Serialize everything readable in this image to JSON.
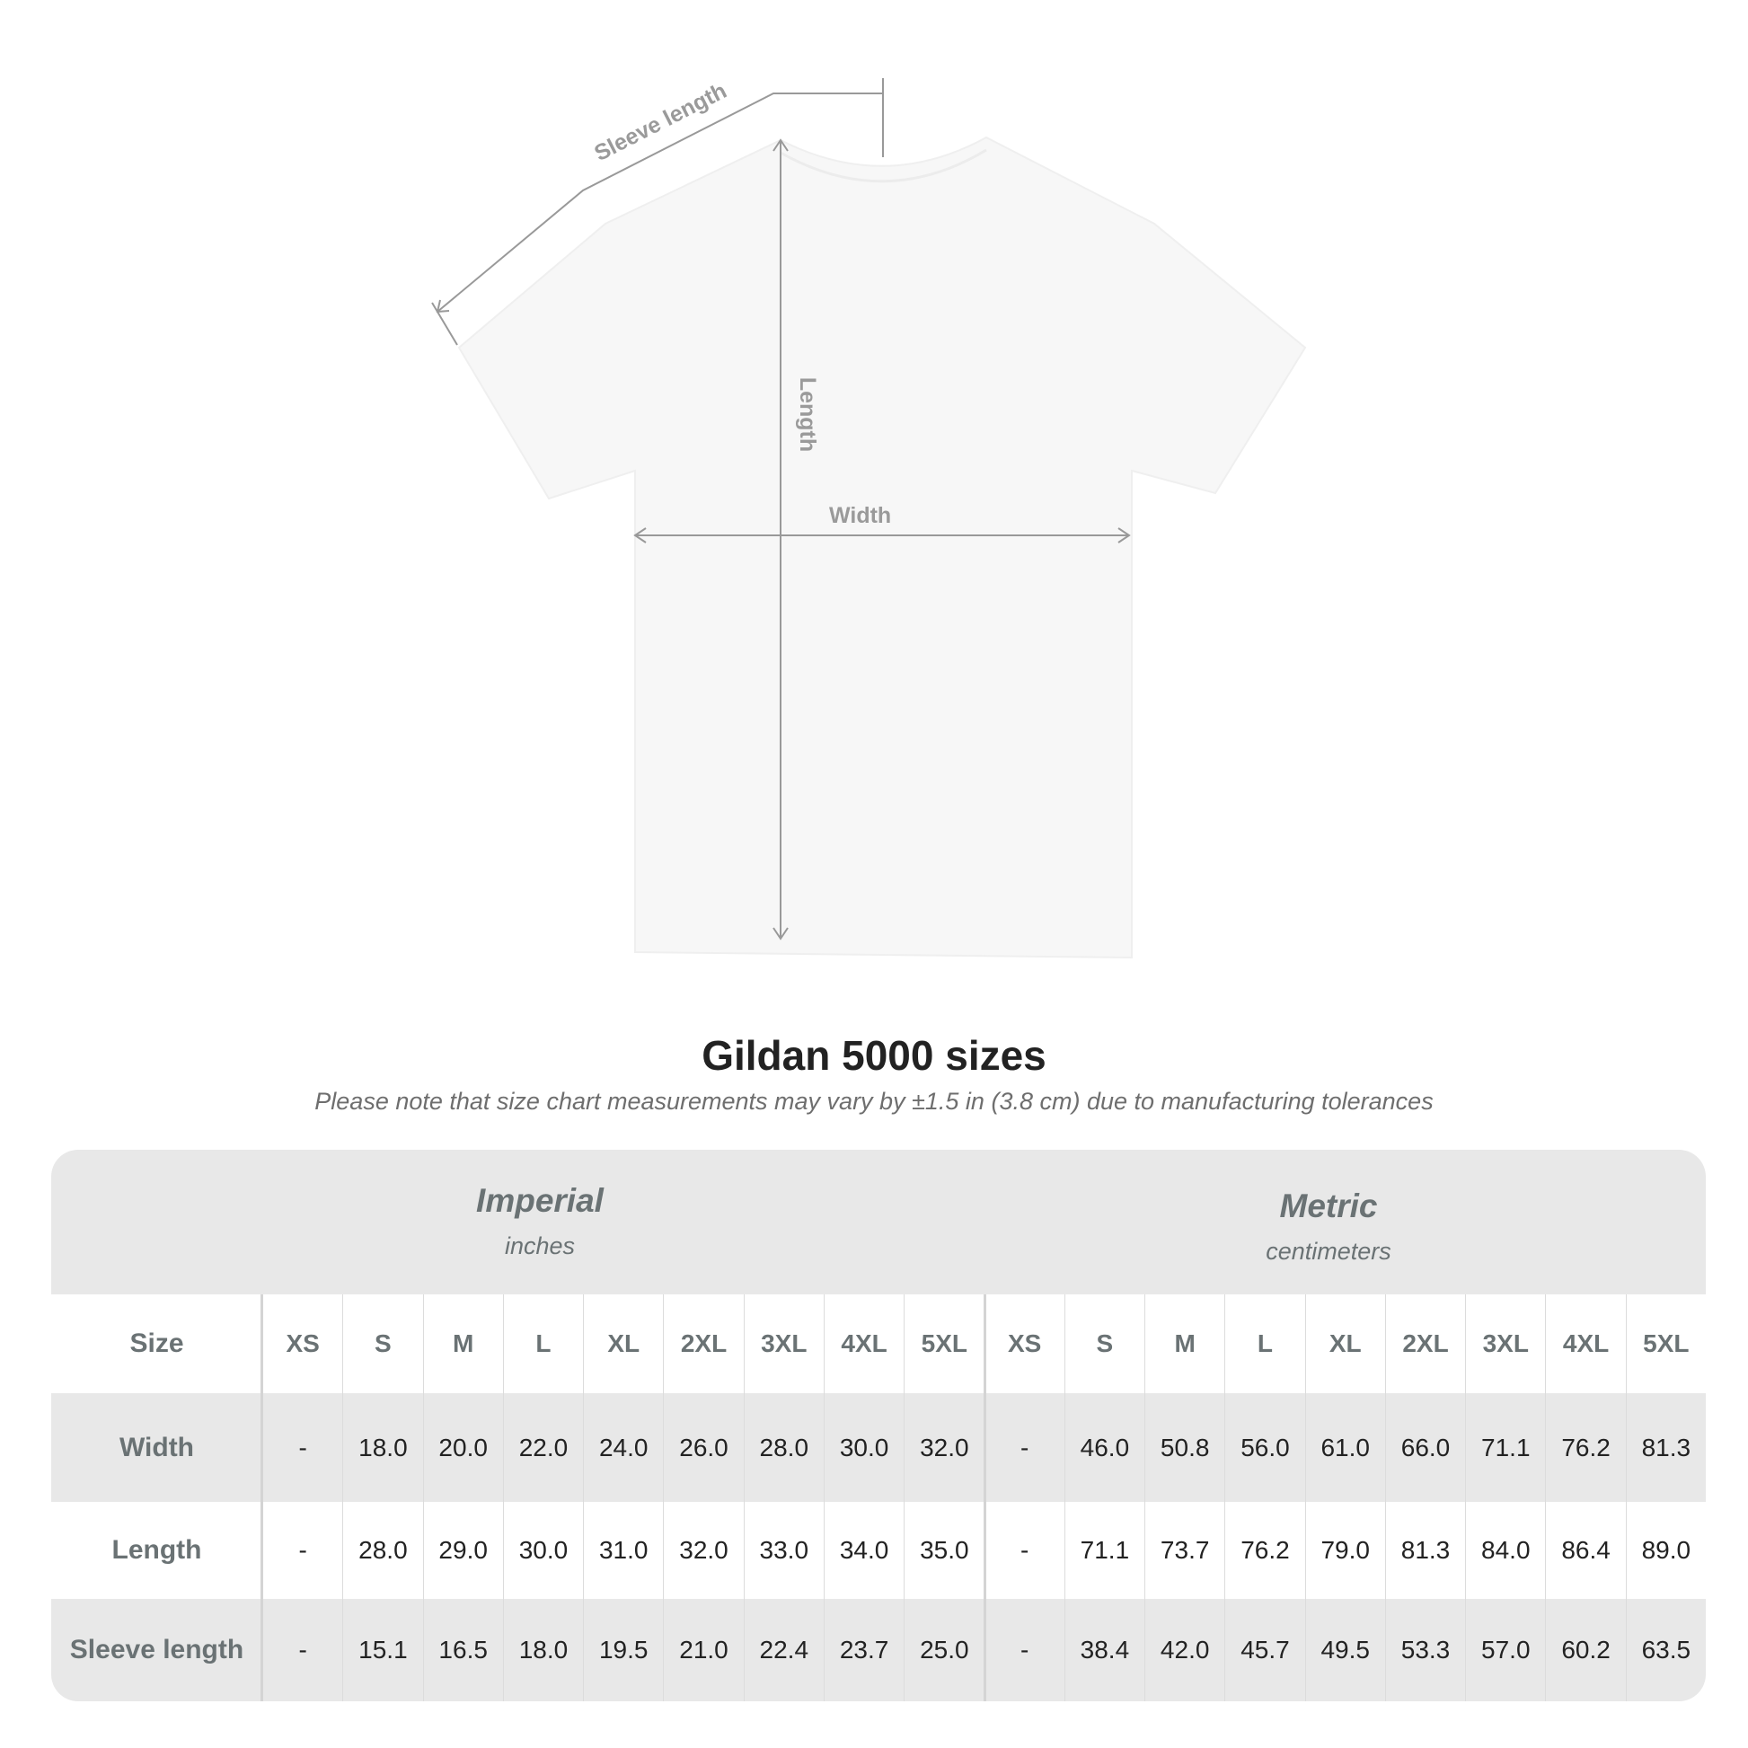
{
  "diagram": {
    "labels": {
      "sleeve_length": "Sleeve length",
      "length": "Length",
      "width": "Width"
    },
    "shirt_color": "#f7f7f7",
    "line_color": "#999999"
  },
  "title": "Gildan 5000 sizes",
  "note": "Please note that size chart measurements may vary by ±1.5 in (3.8 cm) due to manufacturing tolerances",
  "table": {
    "imperial": {
      "name": "Imperial",
      "unit": "inches"
    },
    "metric": {
      "name": "Metric",
      "unit": "centimeters"
    },
    "size_label": "Size",
    "sizes": [
      "XS",
      "S",
      "M",
      "L",
      "XL",
      "2XL",
      "3XL",
      "4XL",
      "5XL"
    ],
    "rows": [
      {
        "label": "Width",
        "imperial": [
          "-",
          "18.0",
          "20.0",
          "22.0",
          "24.0",
          "26.0",
          "28.0",
          "30.0",
          "32.0"
        ],
        "metric": [
          "-",
          "46.0",
          "50.8",
          "56.0",
          "61.0",
          "66.0",
          "71.1",
          "76.2",
          "81.3"
        ]
      },
      {
        "label": "Length",
        "imperial": [
          "-",
          "28.0",
          "29.0",
          "30.0",
          "31.0",
          "32.0",
          "33.0",
          "34.0",
          "35.0"
        ],
        "metric": [
          "-",
          "71.1",
          "73.7",
          "76.2",
          "79.0",
          "81.3",
          "84.0",
          "86.4",
          "89.0"
        ]
      },
      {
        "label": "Sleeve length",
        "imperial": [
          "-",
          "15.1",
          "16.5",
          "18.0",
          "19.5",
          "21.0",
          "22.4",
          "23.7",
          "25.0"
        ],
        "metric": [
          "-",
          "38.4",
          "42.0",
          "45.7",
          "49.5",
          "53.3",
          "57.0",
          "60.2",
          "63.5"
        ]
      }
    ],
    "band_color": "#e8e8e8",
    "header_text_color": "#6a7274"
  }
}
